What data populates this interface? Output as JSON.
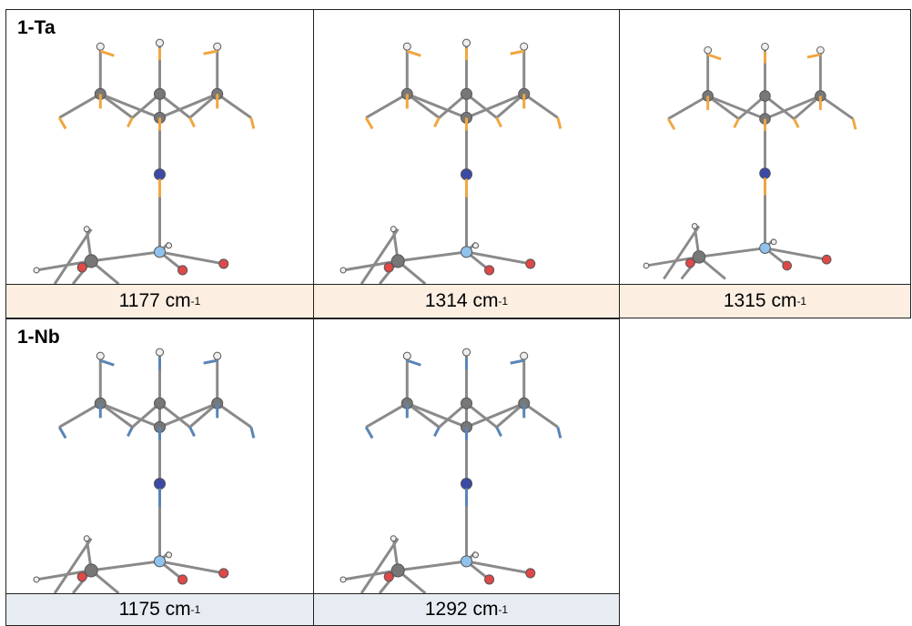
{
  "panels": [
    {
      "label": "1-Ta",
      "modes": [
        {
          "value": "1177",
          "unit": "cm",
          "exponent": "-1"
        },
        {
          "value": "1314",
          "unit": "cm",
          "exponent": "-1"
        },
        {
          "value": "1315",
          "unit": "cm",
          "exponent": "-1"
        }
      ]
    },
    {
      "label": "1-Nb",
      "modes": [
        {
          "value": "1175",
          "unit": "cm",
          "exponent": "-1"
        },
        {
          "value": "1292",
          "unit": "cm",
          "exponent": "-1"
        }
      ]
    }
  ]
}
